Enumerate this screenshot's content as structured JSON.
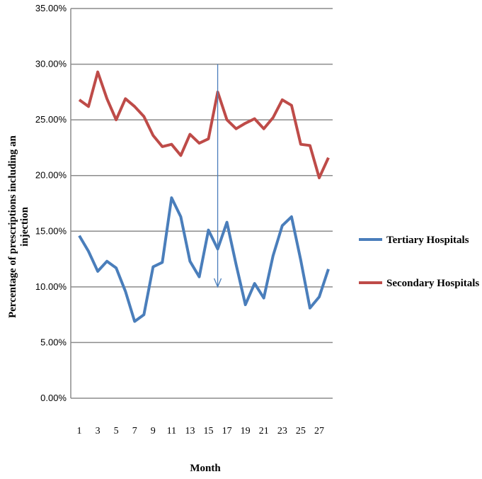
{
  "chart_data": {
    "type": "line",
    "title": "",
    "xlabel": "Month",
    "ylabel": "Percentage of prescriptions including an injection",
    "xlim": [
      1,
      28
    ],
    "ylim": [
      0,
      35
    ],
    "y_tick_labels": [
      "0.00%",
      "5.00%",
      "10.00%",
      "15.00%",
      "20.00%",
      "25.00%",
      "30.00%",
      "35.00%"
    ],
    "x_tick_labels": [
      "1",
      "3",
      "5",
      "7",
      "9",
      "11",
      "13",
      "15",
      "17",
      "19",
      "21",
      "23",
      "25",
      "27"
    ],
    "grid": "horizontal",
    "legend_position": "right",
    "annotation": {
      "type": "arrow",
      "x": 16,
      "y_from": 30,
      "y_to": 10,
      "color": "#4a7ebb"
    },
    "x": [
      1,
      2,
      3,
      4,
      5,
      6,
      7,
      8,
      9,
      10,
      11,
      12,
      13,
      14,
      15,
      16,
      17,
      18,
      19,
      20,
      21,
      22,
      23,
      24,
      25,
      26,
      27,
      28
    ],
    "series": [
      {
        "name": "Tertiary Hospitals",
        "color": "#4a7ebb",
        "values": [
          14.6,
          13.2,
          11.4,
          12.3,
          11.7,
          9.6,
          6.9,
          7.5,
          11.8,
          12.2,
          18.0,
          16.3,
          12.3,
          10.9,
          15.1,
          13.4,
          15.8,
          12.0,
          8.4,
          10.3,
          9.0,
          12.8,
          15.5,
          16.3,
          12.4,
          8.1,
          9.1,
          11.6
        ]
      },
      {
        "name": "Secondary Hospitals",
        "color": "#be4b48",
        "values": [
          26.8,
          26.2,
          29.3,
          26.9,
          25.0,
          26.9,
          26.2,
          25.3,
          23.6,
          22.6,
          22.8,
          21.8,
          23.7,
          22.9,
          23.3,
          27.5,
          25.0,
          24.2,
          24.7,
          25.1,
          24.2,
          25.2,
          26.8,
          26.3,
          22.8,
          22.7,
          19.8,
          21.6
        ]
      }
    ]
  }
}
